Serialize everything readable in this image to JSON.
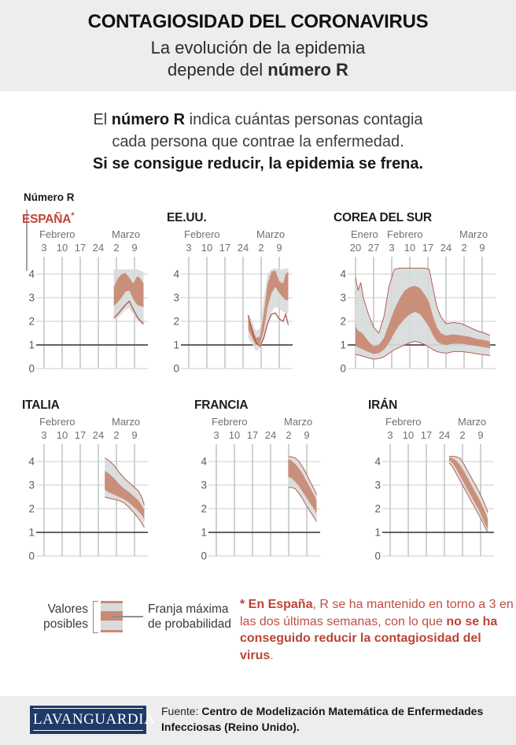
{
  "header": {
    "title": "CONTAGIOSIDAD DEL CORONAVIRUS",
    "subtitle_line1": "La evolución de la epidemia",
    "subtitle_line2_pre": "depende del ",
    "subtitle_line2_bold": "número R"
  },
  "intro": {
    "line1_pre": "El ",
    "line1_bold": "número R",
    "line1_post": " indica cuántas personas contagia",
    "line2": "cada persona que contrae la enfermedad.",
    "line3": "Si se consigue reducir, la epidemia se frena."
  },
  "axis_label": "Número R",
  "legend": {
    "left_line1": "Valores",
    "left_line2": "posibles",
    "right_line1": "Franja máxima",
    "right_line2": "de probabilidad"
  },
  "footnote": {
    "bold_lead": "* En España",
    "text_mid": ", R se ha mantenido en torno a 3 en las dos últimas semanas, con lo que ",
    "bold_end": "no se ha conseguido reducir la contagiosidad del virus",
    "period": "."
  },
  "footer": {
    "logo": "LAVANGUARDIA",
    "source_prefix": "Fuente: ",
    "source_bold": "Centro de Modelización Matemática de Enfermedades Infecciosas (Reino Unido)."
  },
  "colors": {
    "accent_red": "#c2453a",
    "band_salmon": "#c98a74",
    "band_gray": "#d8dbdb",
    "line_red": "#ad5140",
    "grid_vertical": "#9fa5a7",
    "grid_horizontal": "#cbcbcb",
    "baseline_dark": "#4e4e4e",
    "header_bg": "#ededed",
    "logo_navy": "#1d3a68"
  },
  "chart_data": [
    {
      "type": "area",
      "title": "ESPAÑA",
      "title_suffix": "*",
      "months": [
        {
          "label": "Febrero",
          "tick": 0
        },
        {
          "label": "Marzo",
          "tick": 4
        }
      ],
      "ticks": {
        "labels": [
          "3",
          "10",
          "17",
          "24",
          "2",
          "9"
        ],
        "days": [
          0,
          7,
          14,
          21,
          28,
          35
        ]
      },
      "ylim": [
        0,
        4.65
      ],
      "yticks": [
        0,
        1,
        2,
        3,
        4
      ],
      "baseline": 1,
      "outline": false,
      "series": {
        "x": [
          27,
          28.5,
          30,
          31.5,
          33,
          34.5,
          36,
          37,
          38.5
        ],
        "possible_high": [
          4.2,
          4.2,
          4.2,
          4.2,
          4.2,
          4.2,
          4.2,
          4.15,
          4.1
        ],
        "max_prob_high": [
          3.45,
          3.8,
          4.0,
          4.05,
          3.85,
          3.6,
          3.9,
          3.85,
          3.6
        ],
        "max_prob_low": [
          2.65,
          2.8,
          3.0,
          3.25,
          3.3,
          2.95,
          2.7,
          2.65,
          2.6
        ],
        "possible_low": [
          2.05,
          2.15,
          2.3,
          2.5,
          2.55,
          2.3,
          2.05,
          1.95,
          1.8
        ],
        "central_line": [
          2.15,
          2.3,
          2.5,
          2.7,
          2.85,
          2.5,
          2.2,
          2.05,
          1.9
        ]
      }
    },
    {
      "type": "area",
      "title": "EE.UU.",
      "months": [
        {
          "label": "Febrero",
          "tick": 0
        },
        {
          "label": "Marzo",
          "tick": 4
        }
      ],
      "ticks": {
        "labels": [
          "3",
          "10",
          "17",
          "24",
          "2",
          "9"
        ],
        "days": [
          0,
          7,
          14,
          21,
          28,
          35
        ]
      },
      "ylim": [
        0,
        4.65
      ],
      "yticks": [
        0,
        1,
        2,
        3,
        4
      ],
      "baseline": 1,
      "outline": false,
      "series": {
        "x": [
          23,
          24.5,
          26,
          27.5,
          29,
          30.5,
          32,
          33.5,
          35,
          36.5,
          37.5,
          38.5
        ],
        "possible_high": [
          2.35,
          2.0,
          1.6,
          1.7,
          2.9,
          4.0,
          4.2,
          4.25,
          4.2,
          4.2,
          4.25,
          4.25
        ],
        "max_prob_high": [
          2.25,
          1.75,
          1.3,
          1.35,
          2.3,
          3.6,
          4.1,
          4.15,
          3.7,
          3.6,
          4.0,
          4.1
        ],
        "max_prob_low": [
          1.65,
          1.3,
          1.0,
          1.05,
          1.6,
          2.6,
          3.2,
          3.45,
          3.2,
          3.0,
          2.9,
          2.9
        ],
        "possible_low": [
          1.3,
          1.05,
          0.75,
          0.85,
          1.2,
          1.9,
          2.4,
          2.6,
          2.55,
          2.4,
          2.35,
          2.3
        ],
        "central_line": [
          2.25,
          1.6,
          1.1,
          0.95,
          1.3,
          1.9,
          2.3,
          2.35,
          2.1,
          2.0,
          2.3,
          1.85
        ]
      }
    },
    {
      "type": "area",
      "title": "COREA DEL SUR",
      "months": [
        {
          "label": "Enero",
          "tick": 0
        },
        {
          "label": "Febrero",
          "tick": 2
        },
        {
          "label": "Marzo",
          "tick": 6
        }
      ],
      "ticks": {
        "labels": [
          "20",
          "27",
          "3",
          "10",
          "17",
          "24",
          "2",
          "9"
        ],
        "days": [
          0,
          7,
          14,
          21,
          28,
          35,
          42,
          49
        ]
      },
      "ylim": [
        0,
        4.65
      ],
      "yticks": [
        0,
        1,
        2,
        3,
        4
      ],
      "baseline": 1,
      "outline": true,
      "series": {
        "x": [
          0,
          1,
          2,
          3,
          5,
          7,
          9,
          11,
          13,
          15,
          17,
          19,
          21,
          23,
          25,
          27,
          28.5,
          30,
          31.5,
          33,
          35,
          38,
          41,
          44,
          47,
          50,
          52
        ],
        "possible_high": [
          3.85,
          3.3,
          3.65,
          3.0,
          2.3,
          1.75,
          1.5,
          2.2,
          3.5,
          4.2,
          4.25,
          4.25,
          4.25,
          4.25,
          4.25,
          4.25,
          4.2,
          3.4,
          2.6,
          2.2,
          1.9,
          1.95,
          1.9,
          1.75,
          1.6,
          1.5,
          1.4
        ],
        "max_prob_high": [
          1.8,
          1.6,
          1.55,
          1.45,
          1.15,
          0.95,
          1.0,
          1.3,
          1.9,
          2.5,
          2.95,
          3.3,
          3.45,
          3.5,
          3.4,
          3.1,
          2.8,
          2.2,
          1.75,
          1.5,
          1.4,
          1.45,
          1.4,
          1.35,
          1.25,
          1.2,
          1.15
        ],
        "max_prob_low": [
          0.95,
          0.9,
          0.85,
          0.8,
          0.7,
          0.62,
          0.65,
          0.8,
          1.1,
          1.5,
          1.85,
          2.1,
          2.3,
          2.4,
          2.3,
          2.0,
          1.75,
          1.4,
          1.15,
          1.05,
          1.0,
          1.05,
          1.05,
          1.0,
          0.95,
          0.9,
          0.85
        ],
        "possible_low": [
          0.6,
          0.58,
          0.55,
          0.52,
          0.45,
          0.4,
          0.42,
          0.5,
          0.65,
          0.8,
          0.9,
          1.0,
          1.1,
          1.15,
          1.1,
          1.0,
          0.9,
          0.8,
          0.72,
          0.68,
          0.65,
          0.72,
          0.72,
          0.68,
          0.62,
          0.58,
          0.55
        ],
        "central_line": null
      }
    },
    {
      "type": "area",
      "title": "ITALIA",
      "months": [
        {
          "label": "Febrero",
          "tick": 0
        },
        {
          "label": "Marzo",
          "tick": 4
        }
      ],
      "ticks": {
        "labels": [
          "3",
          "10",
          "17",
          "24",
          "2",
          "9"
        ],
        "days": [
          0,
          7,
          14,
          21,
          28,
          35
        ]
      },
      "ylim": [
        0,
        4.65
      ],
      "yticks": [
        0,
        1,
        2,
        3,
        4
      ],
      "baseline": 1,
      "outline": true,
      "series": {
        "x": [
          23.5,
          25,
          27,
          29,
          31,
          33,
          35,
          36.5,
          38,
          38.8
        ],
        "possible_high": [
          4.15,
          4.05,
          3.85,
          3.55,
          3.3,
          3.1,
          2.9,
          2.75,
          2.45,
          2.15
        ],
        "max_prob_high": [
          3.6,
          3.5,
          3.3,
          3.05,
          2.85,
          2.7,
          2.5,
          2.35,
          2.1,
          1.95
        ],
        "max_prob_low": [
          2.8,
          2.7,
          2.6,
          2.5,
          2.4,
          2.25,
          2.05,
          1.9,
          1.7,
          1.55
        ],
        "possible_low": [
          2.5,
          2.45,
          2.4,
          2.35,
          2.25,
          2.05,
          1.8,
          1.6,
          1.35,
          1.2
        ],
        "central_line": null
      }
    },
    {
      "type": "area",
      "title": "FRANCIA",
      "months": [
        {
          "label": "Febrero",
          "tick": 0
        },
        {
          "label": "Marzo",
          "tick": 4
        }
      ],
      "ticks": {
        "labels": [
          "3",
          "10",
          "17",
          "24",
          "2",
          "9"
        ],
        "days": [
          0,
          7,
          14,
          21,
          28,
          35
        ]
      },
      "ylim": [
        0,
        4.65
      ],
      "yticks": [
        0,
        1,
        2,
        3,
        4
      ],
      "baseline": 1,
      "outline": true,
      "series": {
        "x": [
          27.8,
          29,
          30.5,
          32,
          33.5,
          35,
          36.5,
          38,
          38.8
        ],
        "possible_high": [
          4.2,
          4.2,
          4.15,
          4.0,
          3.75,
          3.45,
          3.1,
          2.8,
          2.6
        ],
        "max_prob_high": [
          4.1,
          4.05,
          3.9,
          3.7,
          3.45,
          3.15,
          2.85,
          2.55,
          2.35
        ],
        "max_prob_low": [
          3.35,
          3.3,
          3.15,
          2.95,
          2.7,
          2.45,
          2.2,
          1.95,
          1.8
        ],
        "possible_low": [
          2.9,
          2.9,
          2.85,
          2.65,
          2.4,
          2.1,
          1.85,
          1.6,
          1.45
        ],
        "central_line": null
      }
    },
    {
      "type": "area",
      "title": "IRÁN",
      "months": [
        {
          "label": "Febrero",
          "tick": 0
        },
        {
          "label": "Marzo",
          "tick": 4
        }
      ],
      "ticks": {
        "labels": [
          "3",
          "10",
          "17",
          "24",
          "2",
          "9"
        ],
        "days": [
          0,
          7,
          14,
          21,
          28,
          35
        ]
      },
      "ylim": [
        0,
        4.65
      ],
      "yticks": [
        0,
        1,
        2,
        3,
        4
      ],
      "baseline": 1,
      "outline": true,
      "series": {
        "x": [
          22.8,
          24,
          25.5,
          27,
          28.5,
          30,
          31.5,
          33,
          34.5,
          36,
          37,
          37.8
        ],
        "possible_high": [
          4.22,
          4.22,
          4.2,
          4.15,
          3.9,
          3.6,
          3.3,
          3.0,
          2.7,
          2.35,
          2.1,
          1.85
        ],
        "max_prob_high": [
          4.18,
          4.15,
          4.05,
          3.85,
          3.6,
          3.3,
          3.0,
          2.7,
          2.4,
          2.05,
          1.8,
          1.55
        ],
        "max_prob_low": [
          4.05,
          3.95,
          3.7,
          3.4,
          3.1,
          2.8,
          2.5,
          2.2,
          1.9,
          1.55,
          1.3,
          1.1
        ],
        "possible_low": [
          3.95,
          3.8,
          3.5,
          3.2,
          2.9,
          2.6,
          2.3,
          2.0,
          1.7,
          1.4,
          1.15,
          1.0
        ],
        "central_line": null
      }
    }
  ]
}
